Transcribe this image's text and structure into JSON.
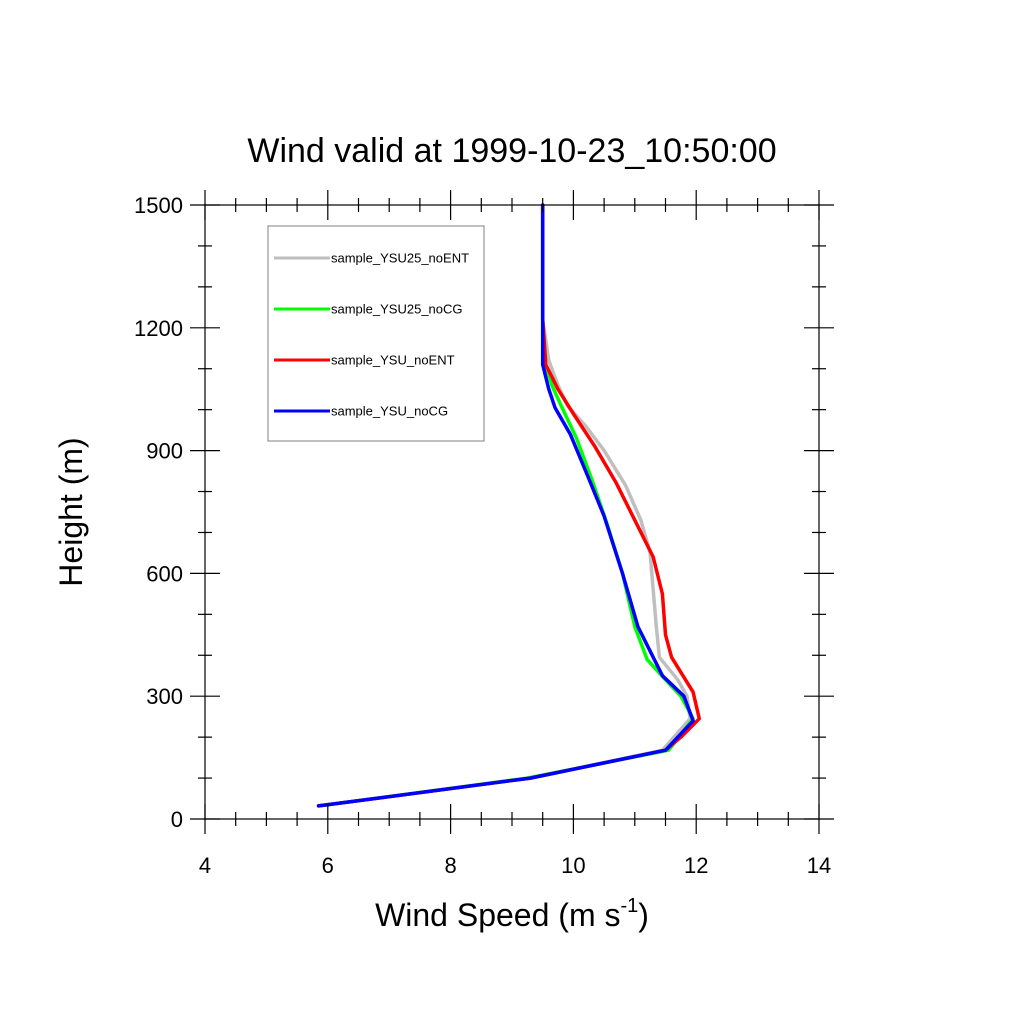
{
  "chart_data": {
    "type": "line",
    "title": "Wind valid at 1999-10-23_10:50:00",
    "xlabel": "Wind Speed (m s",
    "xlabel_sup": "-1",
    "xlabel_close": ")",
    "ylabel": "Height (m)",
    "xlim": [
      4,
      14
    ],
    "ylim": [
      0,
      1500
    ],
    "x_major_ticks": [
      4,
      6,
      8,
      10,
      12,
      14
    ],
    "x_minor_step": 0.5,
    "y_major_ticks": [
      0,
      300,
      600,
      900,
      1200,
      1500
    ],
    "y_minor_step": 100,
    "grid": false,
    "legend_position": "upper-left",
    "series": [
      {
        "name": "sample_YSU25_noENT",
        "color": "#bfbfbf",
        "points": [
          [
            5.85,
            32
          ],
          [
            9.3,
            100
          ],
          [
            11.45,
            168
          ],
          [
            11.9,
            245
          ],
          [
            11.85,
            300
          ],
          [
            11.7,
            340
          ],
          [
            11.4,
            395
          ],
          [
            11.35,
            470
          ],
          [
            11.3,
            560
          ],
          [
            11.25,
            650
          ],
          [
            11.1,
            730
          ],
          [
            10.85,
            815
          ],
          [
            10.5,
            900
          ],
          [
            10.2,
            960
          ],
          [
            9.9,
            1010
          ],
          [
            9.75,
            1060
          ],
          [
            9.6,
            1120
          ],
          [
            9.5,
            1220
          ],
          [
            9.5,
            1300
          ],
          [
            9.5,
            1400
          ],
          [
            9.5,
            1500
          ]
        ]
      },
      {
        "name": "sample_YSU25_noCG",
        "color": "#00ff00",
        "points": [
          [
            5.85,
            32
          ],
          [
            9.25,
            100
          ],
          [
            11.55,
            168
          ],
          [
            11.95,
            245
          ],
          [
            11.75,
            300
          ],
          [
            11.5,
            340
          ],
          [
            11.2,
            390
          ],
          [
            11.0,
            470
          ],
          [
            10.8,
            600
          ],
          [
            10.55,
            720
          ],
          [
            10.3,
            830
          ],
          [
            10.05,
            930
          ],
          [
            9.8,
            1010
          ],
          [
            9.65,
            1060
          ],
          [
            9.55,
            1110
          ],
          [
            9.5,
            1220
          ],
          [
            9.5,
            1300
          ],
          [
            9.5,
            1400
          ],
          [
            9.5,
            1500
          ]
        ]
      },
      {
        "name": "sample_YSU_noENT",
        "color": "#ff0000",
        "points": [
          [
            5.85,
            32
          ],
          [
            9.3,
            100
          ],
          [
            11.5,
            168
          ],
          [
            11.75,
            200
          ],
          [
            12.05,
            245
          ],
          [
            11.95,
            310
          ],
          [
            11.6,
            395
          ],
          [
            11.5,
            450
          ],
          [
            11.45,
            550
          ],
          [
            11.3,
            640
          ],
          [
            11.0,
            730
          ],
          [
            10.7,
            820
          ],
          [
            10.35,
            910
          ],
          [
            10.0,
            990
          ],
          [
            9.75,
            1050
          ],
          [
            9.55,
            1110
          ],
          [
            9.5,
            1220
          ],
          [
            9.5,
            1300
          ],
          [
            9.5,
            1400
          ],
          [
            9.5,
            1500
          ]
        ]
      },
      {
        "name": "sample_YSU_noCG",
        "color": "#0000ff",
        "points": [
          [
            5.85,
            32
          ],
          [
            9.3,
            100
          ],
          [
            11.5,
            168
          ],
          [
            11.95,
            240
          ],
          [
            11.8,
            300
          ],
          [
            11.45,
            350
          ],
          [
            11.05,
            470
          ],
          [
            10.8,
            600
          ],
          [
            10.5,
            740
          ],
          [
            10.2,
            850
          ],
          [
            9.95,
            940
          ],
          [
            9.7,
            1005
          ],
          [
            9.6,
            1050
          ],
          [
            9.5,
            1110
          ],
          [
            9.5,
            1220
          ],
          [
            9.5,
            1300
          ],
          [
            9.5,
            1400
          ],
          [
            9.5,
            1500
          ]
        ]
      }
    ]
  }
}
